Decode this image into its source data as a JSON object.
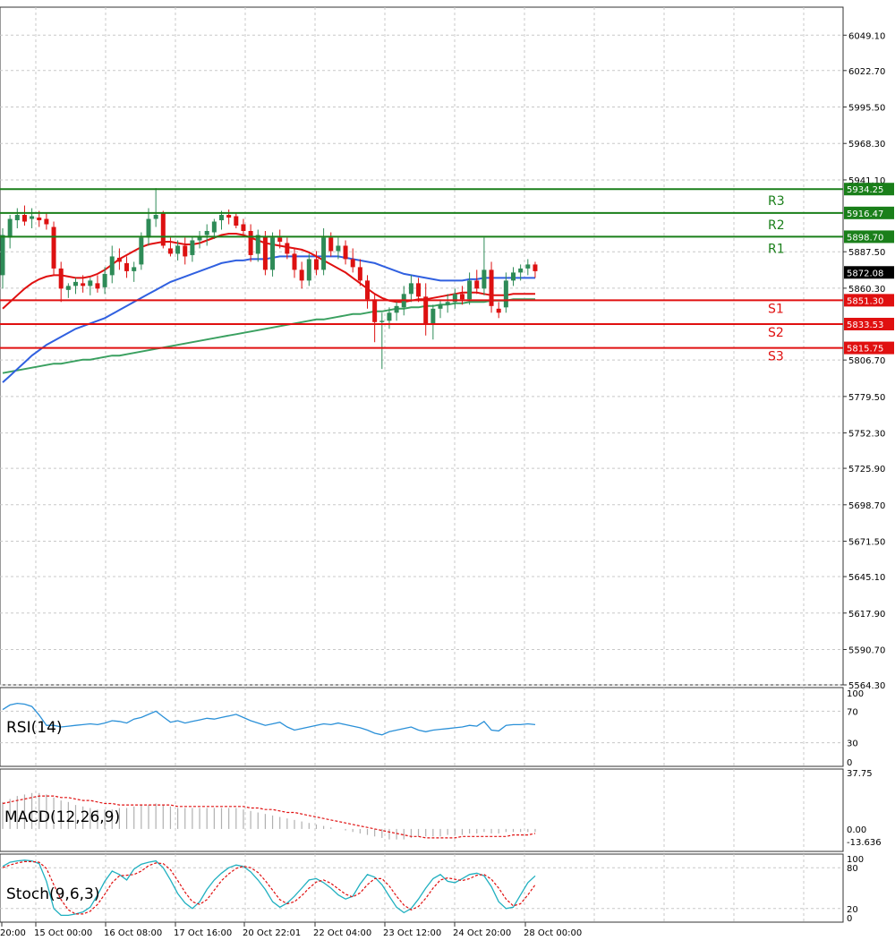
{
  "colors": {
    "bull": "#2e8b57",
    "bear": "#dd1111",
    "ma_fast": "#e01010",
    "ma_mid": "#3060e0",
    "ma_slow": "#3aa060",
    "resistance": "#1a7f1a",
    "support": "#e01010",
    "current_price_bg": "#000000",
    "grid": "#c8c8c8",
    "rsi": "#2a90d8",
    "macd_hist": "#b0b0b0",
    "macd_signal": "#e01010",
    "stoch_main": "#20b0c0",
    "stoch_signal": "#e01010"
  },
  "chart_data": {
    "type": "candlestick",
    "price_axis": {
      "ylim": [
        5564.3,
        6070.0
      ],
      "tick_labels": [
        "6049.10",
        "6022.70",
        "5995.50",
        "5968.30",
        "5941.10",
        "5887.50",
        "5860.30",
        "5806.70",
        "5779.50",
        "5752.30",
        "5725.90",
        "5698.70",
        "5671.50",
        "5645.10",
        "5617.90",
        "5590.70",
        "5564.30"
      ]
    },
    "x_tick_labels": [
      "20:00",
      "15 Oct 00:00",
      "16 Oct 08:00",
      "17 Oct 16:00",
      "20 Oct 22:01",
      "22 Oct 04:00",
      "23 Oct 12:00",
      "24 Oct 20:00",
      "28 Oct 00:00"
    ],
    "current_price": "5872.08",
    "levels": [
      {
        "name": "R3",
        "value": 5934.25,
        "label": "5934.25",
        "kind": "resistance"
      },
      {
        "name": "R2",
        "value": 5916.47,
        "label": "5916.47",
        "kind": "resistance"
      },
      {
        "name": "R1",
        "value": 5898.7,
        "label": "5898.70",
        "kind": "resistance"
      },
      {
        "name": "S1",
        "value": 5851.3,
        "label": "5851.30",
        "kind": "support"
      },
      {
        "name": "S2",
        "value": 5833.53,
        "label": "5833.53",
        "kind": "support"
      },
      {
        "name": "S3",
        "value": 5815.75,
        "label": "5815.75",
        "kind": "support"
      }
    ],
    "candles": [
      [
        5870,
        5905,
        5860,
        5900
      ],
      [
        5898,
        5915,
        5890,
        5912
      ],
      [
        5911,
        5920,
        5905,
        5915
      ],
      [
        5915,
        5922,
        5907,
        5910
      ],
      [
        5912,
        5920,
        5905,
        5914
      ],
      [
        5913,
        5918,
        5906,
        5911
      ],
      [
        5912,
        5916,
        5904,
        5908
      ],
      [
        5906,
        5910,
        5870,
        5875
      ],
      [
        5875,
        5880,
        5850,
        5860
      ],
      [
        5859,
        5864,
        5853,
        5862
      ],
      [
        5862,
        5868,
        5856,
        5865
      ],
      [
        5864,
        5870,
        5857,
        5862
      ],
      [
        5862,
        5868,
        5855,
        5866
      ],
      [
        5864,
        5870,
        5857,
        5860
      ],
      [
        5861,
        5876,
        5856,
        5871
      ],
      [
        5870,
        5892,
        5864,
        5884
      ],
      [
        5883,
        5890,
        5874,
        5880
      ],
      [
        5879,
        5884,
        5868,
        5873
      ],
      [
        5873,
        5880,
        5865,
        5876
      ],
      [
        5878,
        5902,
        5874,
        5898
      ],
      [
        5898,
        5920,
        5892,
        5912
      ],
      [
        5912,
        5935,
        5906,
        5915
      ],
      [
        5916,
        5918,
        5890,
        5892
      ],
      [
        5890,
        5898,
        5884,
        5886
      ],
      [
        5886,
        5896,
        5881,
        5892
      ],
      [
        5892,
        5898,
        5878,
        5884
      ],
      [
        5885,
        5899,
        5880,
        5896
      ],
      [
        5896,
        5903,
        5890,
        5899
      ],
      [
        5900,
        5908,
        5892,
        5903
      ],
      [
        5902,
        5912,
        5897,
        5910
      ],
      [
        5911,
        5918,
        5904,
        5915
      ],
      [
        5915,
        5919,
        5908,
        5913
      ],
      [
        5914,
        5917,
        5905,
        5907
      ],
      [
        5908,
        5912,
        5899,
        5903
      ],
      [
        5903,
        5908,
        5880,
        5885
      ],
      [
        5886,
        5904,
        5880,
        5900
      ],
      [
        5899,
        5903,
        5870,
        5874
      ],
      [
        5874,
        5902,
        5869,
        5898
      ],
      [
        5898,
        5904,
        5890,
        5895
      ],
      [
        5894,
        5898,
        5882,
        5886
      ],
      [
        5886,
        5890,
        5868,
        5874
      ],
      [
        5874,
        5880,
        5860,
        5866
      ],
      [
        5866,
        5886,
        5862,
        5882
      ],
      [
        5882,
        5888,
        5870,
        5874
      ],
      [
        5874,
        5905,
        5870,
        5898
      ],
      [
        5898,
        5902,
        5884,
        5888
      ],
      [
        5888,
        5898,
        5882,
        5892
      ],
      [
        5892,
        5896,
        5878,
        5882
      ],
      [
        5882,
        5890,
        5872,
        5876
      ],
      [
        5876,
        5882,
        5862,
        5866
      ],
      [
        5866,
        5870,
        5845,
        5852
      ],
      [
        5852,
        5856,
        5820,
        5835
      ],
      [
        5835,
        5842,
        5800,
        5836
      ],
      [
        5836,
        5846,
        5830,
        5842
      ],
      [
        5842,
        5850,
        5836,
        5847
      ],
      [
        5846,
        5862,
        5840,
        5856
      ],
      [
        5856,
        5870,
        5850,
        5864
      ],
      [
        5864,
        5868,
        5850,
        5854
      ],
      [
        5854,
        5864,
        5825,
        5834
      ],
      [
        5834,
        5848,
        5822,
        5845
      ],
      [
        5845,
        5852,
        5838,
        5848
      ],
      [
        5848,
        5856,
        5842,
        5850
      ],
      [
        5850,
        5860,
        5845,
        5856
      ],
      [
        5856,
        5862,
        5848,
        5852
      ],
      [
        5852,
        5872,
        5848,
        5866
      ],
      [
        5866,
        5874,
        5856,
        5860
      ],
      [
        5860,
        5898,
        5855,
        5874
      ],
      [
        5874,
        5880,
        5842,
        5847
      ],
      [
        5845,
        5850,
        5838,
        5842
      ],
      [
        5846,
        5872,
        5842,
        5866
      ],
      [
        5866,
        5876,
        5862,
        5872
      ],
      [
        5872,
        5878,
        5866,
        5875
      ],
      [
        5875,
        5882,
        5870,
        5878
      ],
      [
        5878,
        5880,
        5868,
        5873
      ]
    ],
    "ma_fast": [
      5845,
      5850,
      5855,
      5860,
      5864,
      5867,
      5869,
      5870,
      5870,
      5869,
      5868,
      5868,
      5869,
      5871,
      5874,
      5878,
      5882,
      5885,
      5888,
      5891,
      5893,
      5894,
      5895,
      5895,
      5894,
      5893,
      5893,
      5894,
      5896,
      5898,
      5900,
      5901,
      5901,
      5900,
      5898,
      5896,
      5894,
      5893,
      5892,
      5891,
      5890,
      5889,
      5887,
      5884,
      5881,
      5878,
      5875,
      5872,
      5868,
      5864,
      5860,
      5856,
      5853,
      5851,
      5850,
      5850,
      5851,
      5852,
      5852,
      5853,
      5854,
      5855,
      5856,
      5857,
      5857,
      5857,
      5856,
      5855,
      5855,
      5855,
      5856,
      5856,
      5856,
      5856
    ],
    "ma_mid": [
      5790,
      5795,
      5800,
      5805,
      5810,
      5814,
      5818,
      5821,
      5824,
      5827,
      5830,
      5832,
      5834,
      5836,
      5838,
      5841,
      5844,
      5847,
      5850,
      5853,
      5856,
      5859,
      5862,
      5865,
      5867,
      5869,
      5871,
      5873,
      5875,
      5877,
      5879,
      5880,
      5881,
      5881,
      5882,
      5882,
      5882,
      5883,
      5884,
      5884,
      5884,
      5884,
      5884,
      5884,
      5884,
      5884,
      5884,
      5883,
      5882,
      5881,
      5880,
      5879,
      5877,
      5875,
      5873,
      5871,
      5870,
      5869,
      5868,
      5867,
      5866,
      5866,
      5866,
      5866,
      5867,
      5867,
      5868,
      5868,
      5868,
      5868,
      5868,
      5868,
      5868,
      5868
    ],
    "ma_slow": [
      5797,
      5798,
      5799,
      5800,
      5801,
      5802,
      5803,
      5804,
      5804,
      5805,
      5806,
      5807,
      5807,
      5808,
      5809,
      5810,
      5810,
      5811,
      5812,
      5813,
      5814,
      5815,
      5816,
      5817,
      5818,
      5819,
      5820,
      5821,
      5822,
      5823,
      5824,
      5825,
      5826,
      5827,
      5828,
      5829,
      5830,
      5831,
      5832,
      5833,
      5834,
      5835,
      5836,
      5837,
      5837,
      5838,
      5839,
      5840,
      5841,
      5841,
      5842,
      5843,
      5843,
      5844,
      5845,
      5845,
      5846,
      5846,
      5847,
      5847,
      5848,
      5848,
      5849,
      5849,
      5850,
      5850,
      5850,
      5851,
      5851,
      5851,
      5852,
      5852,
      5852,
      5852
    ],
    "rsi": {
      "label": "RSI(14)",
      "axis_labels": [
        "100",
        "70",
        "30",
        "0"
      ],
      "values": [
        72,
        78,
        80,
        79,
        76,
        65,
        52,
        52,
        50,
        51,
        52,
        53,
        54,
        53,
        55,
        58,
        57,
        55,
        60,
        62,
        66,
        70,
        63,
        56,
        58,
        55,
        57,
        59,
        61,
        60,
        62,
        64,
        66,
        62,
        58,
        55,
        52,
        54,
        56,
        50,
        46,
        48,
        50,
        52,
        54,
        53,
        55,
        53,
        51,
        49,
        46,
        42,
        40,
        44,
        46,
        48,
        50,
        46,
        44,
        46,
        47,
        48,
        49,
        50,
        52,
        51,
        57,
        46,
        45,
        52,
        53,
        53,
        54,
        53
      ],
      "ylim": [
        0,
        100
      ]
    },
    "macd": {
      "label": "MACD(12,26,9)",
      "axis_labels": [
        "37.75",
        "0.00",
        "-13.636"
      ],
      "ylim": [
        -15,
        40
      ],
      "histogram": [
        18,
        20,
        22,
        23,
        24,
        24,
        23,
        21,
        19,
        18,
        16,
        15,
        14,
        13,
        13,
        13,
        14,
        14,
        15,
        16,
        16,
        17,
        16,
        15,
        14,
        14,
        14,
        14,
        14,
        14,
        14,
        14,
        14,
        13,
        12,
        11,
        10,
        9,
        8,
        7,
        6,
        5,
        4,
        3,
        2,
        1,
        0,
        -1,
        -2,
        -3,
        -4,
        -5,
        -6,
        -7,
        -7,
        -7,
        -6,
        -5,
        -5,
        -5,
        -5,
        -4,
        -4,
        -4,
        -3,
        -3,
        -2,
        -3,
        -3,
        -2,
        -2,
        -2,
        -2,
        -2
      ],
      "signal": [
        17,
        18,
        19,
        20,
        21,
        22,
        22,
        22,
        21,
        21,
        20,
        19,
        19,
        18,
        17,
        17,
        16,
        16,
        16,
        16,
        16,
        16,
        16,
        16,
        15,
        15,
        15,
        15,
        15,
        15,
        15,
        15,
        15,
        15,
        14,
        14,
        13,
        13,
        12,
        11,
        11,
        10,
        9,
        8,
        7,
        6,
        5,
        4,
        3,
        2,
        1,
        0,
        -1,
        -2,
        -3,
        -4,
        -5,
        -5,
        -6,
        -6,
        -6,
        -6,
        -6,
        -5,
        -5,
        -5,
        -5,
        -5,
        -5,
        -5,
        -4,
        -4,
        -4,
        -3
      ],
      "zero_label": "0.00"
    },
    "stoch": {
      "label": "Stoch(9,6,3)",
      "axis_labels": [
        "100",
        "80",
        "20",
        "0"
      ],
      "ylim": [
        0,
        100
      ],
      "main": [
        82,
        88,
        90,
        91,
        90,
        86,
        60,
        20,
        10,
        10,
        12,
        15,
        22,
        40,
        60,
        75,
        70,
        62,
        78,
        85,
        88,
        90,
        80,
        62,
        42,
        28,
        20,
        30,
        48,
        62,
        72,
        80,
        84,
        82,
        74,
        62,
        48,
        30,
        22,
        28,
        38,
        50,
        62,
        64,
        58,
        50,
        40,
        34,
        38,
        56,
        70,
        66,
        55,
        38,
        22,
        14,
        20,
        34,
        50,
        64,
        70,
        60,
        58,
        64,
        70,
        72,
        68,
        52,
        30,
        20,
        22,
        40,
        58,
        68
      ],
      "signal": [
        80,
        84,
        87,
        89,
        89,
        88,
        79,
        55,
        33,
        18,
        12,
        12,
        16,
        26,
        41,
        58,
        68,
        69,
        70,
        75,
        83,
        87,
        86,
        77,
        61,
        44,
        30,
        26,
        33,
        47,
        61,
        71,
        79,
        82,
        80,
        73,
        61,
        47,
        33,
        27,
        30,
        39,
        50,
        59,
        62,
        57,
        49,
        41,
        37,
        43,
        55,
        64,
        64,
        53,
        38,
        25,
        18,
        23,
        35,
        50,
        62,
        65,
        63,
        61,
        64,
        69,
        70,
        63,
        50,
        34,
        24,
        27,
        40,
        55
      ]
    }
  }
}
